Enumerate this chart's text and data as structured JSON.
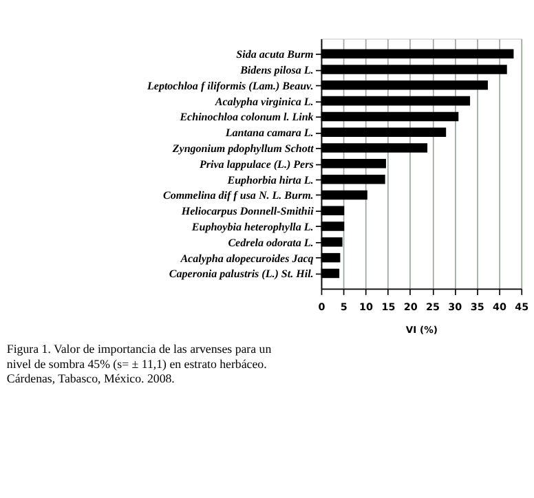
{
  "chart_data": {
    "type": "bar",
    "orientation": "horizontal",
    "xlabel": "VI (%)",
    "categories": [
      "Sida acuta Burm",
      "Bidens pilosa L.",
      "Leptochloa f iliformis (Lam.) Beauv.",
      "Acalypha virginica L.",
      "Echinochloa colonum l. Link",
      "Lantana camara L.",
      "Zyngonium pdophyllum Schott",
      "Priva lappulace (L.) Pers",
      "Euphorbia hirta L.",
      "Commelina dif f usa N. L. Burm.",
      "Heliocarpus Donnell-Smithii",
      "Euphoybia heterophylla L.",
      "Cedrela odorata L.",
      "Acalypha alopecuroides Jacq",
      "Caperonia palustris (L.) St. Hil."
    ],
    "values": [
      43.3,
      41.8,
      37.5,
      33.5,
      30.9,
      28.1,
      23.9,
      14.6,
      14.4,
      10.4,
      5.2,
      5.2,
      4.8,
      4.3,
      4.1
    ],
    "color": "#000000",
    "xlim": [
      0,
      45
    ],
    "xticks": [
      0,
      5,
      10,
      15,
      20,
      25,
      30,
      35,
      40,
      45
    ],
    "grid": "x",
    "annotations": [
      "Figura 1.  Valor de importancia de las arvenses para un nivel de sombra 45% (s= ± 11,1) en estrato herbáceo. Cárdenas, Tabasco, México. 2008."
    ]
  }
}
